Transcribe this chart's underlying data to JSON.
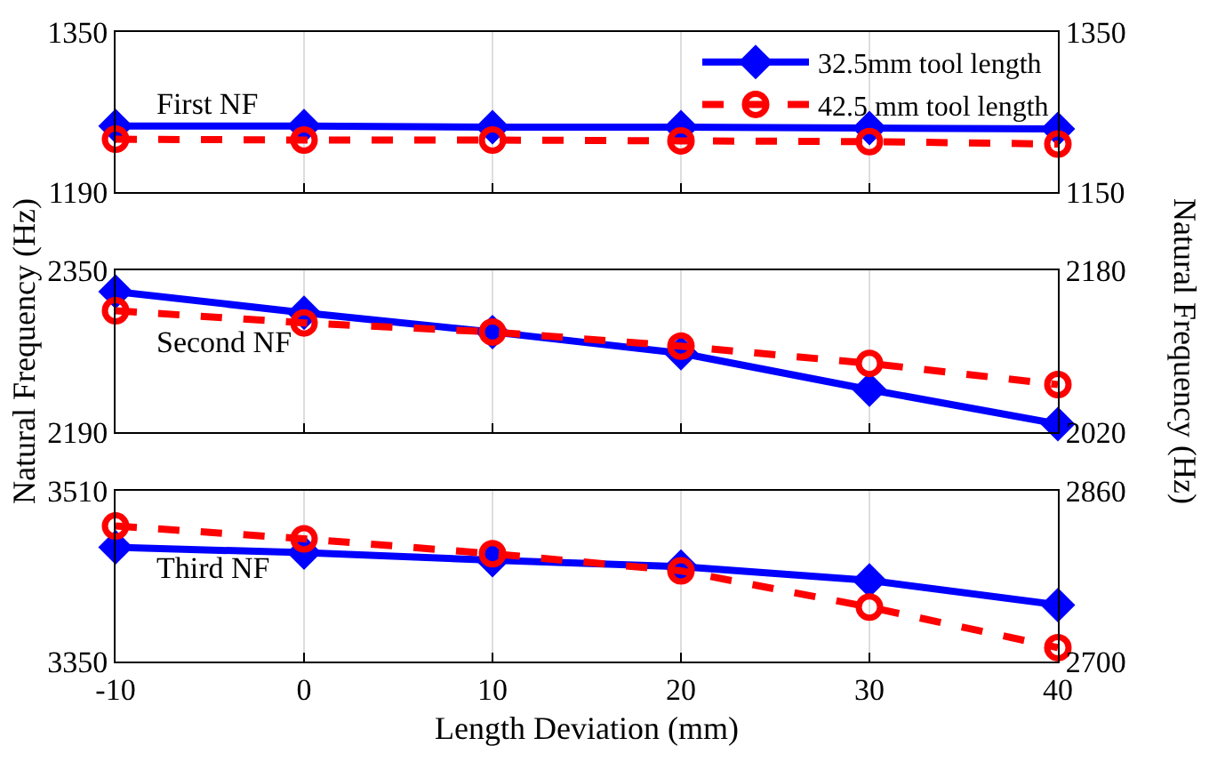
{
  "chart_data": [
    {
      "type": "line",
      "x": [
        -10,
        0,
        10,
        20,
        30,
        40
      ],
      "xlim": [
        -10,
        40
      ],
      "xticks": [
        -10,
        0,
        10,
        20,
        30,
        40
      ],
      "ylim": [
        1190,
        1350
      ],
      "yticks": [
        1190,
        1350
      ],
      "y2lim": [
        1150,
        1350
      ],
      "y2ticks": [
        1150,
        1350
      ],
      "grid": "x",
      "legend": "top right",
      "tick_labels": "y",
      "annotations": [
        "First NF"
      ],
      "series": [
        {
          "name": "32.5mm tool length",
          "color": "#0000ff",
          "marker": "diamond",
          "line_style": "solid",
          "values": [
            1256,
            1256,
            1255,
            1255,
            1254,
            1253
          ]
        },
        {
          "name": "42.5 mm tool length",
          "color": "#ff0000",
          "marker": "circle",
          "line_style": "dashed",
          "axis": "y2",
          "values": [
            1216,
            1215,
            1215,
            1214,
            1213,
            1210
          ]
        }
      ]
    },
    {
      "type": "line",
      "x": [
        -10,
        0,
        10,
        20,
        30,
        40
      ],
      "xlim": [
        -10,
        40
      ],
      "xticks": [
        -10,
        0,
        10,
        20,
        30,
        40
      ],
      "ylim": [
        2190,
        2350
      ],
      "yticks": [
        2190,
        2350
      ],
      "y2lim": [
        2020,
        2180
      ],
      "y2ticks": [
        2020,
        2180
      ],
      "grid": "x",
      "tick_labels": "y",
      "ylabel": "Natural Frequency (Hz)",
      "y2label": "Natural Frequency (Hz)",
      "annotations": [
        "Second NF"
      ],
      "series": [
        {
          "color": "#0000ff",
          "marker": "diamond",
          "line_style": "solid",
          "values": [
            2329,
            2308,
            2289,
            2268,
            2232,
            2198
          ]
        },
        {
          "color": "#ff0000",
          "marker": "circle",
          "line_style": "dashed",
          "axis": "y2",
          "values": [
            2140,
            2128,
            2119,
            2105,
            2088,
            2067
          ]
        }
      ]
    },
    {
      "type": "line",
      "x": [
        -10,
        0,
        10,
        20,
        30,
        40
      ],
      "xlim": [
        -10,
        40
      ],
      "xticks": [
        -10,
        0,
        10,
        20,
        30,
        40
      ],
      "ylim": [
        3350,
        3510
      ],
      "yticks": [
        3350,
        3510
      ],
      "y2lim": [
        2700,
        2860
      ],
      "y2ticks": [
        2700,
        2860
      ],
      "grid": "x",
      "xlabel": "Length Deviation (mm)",
      "annotations": [
        "Third NF"
      ],
      "series": [
        {
          "color": "#0000ff",
          "marker": "diamond",
          "line_style": "solid",
          "values": [
            3457,
            3452,
            3445,
            3439,
            3426,
            3403
          ]
        },
        {
          "color": "#ff0000",
          "marker": "circle",
          "line_style": "dashed",
          "axis": "y2",
          "values": [
            2827,
            2815,
            2801,
            2785,
            2751,
            2713
          ]
        }
      ]
    }
  ]
}
